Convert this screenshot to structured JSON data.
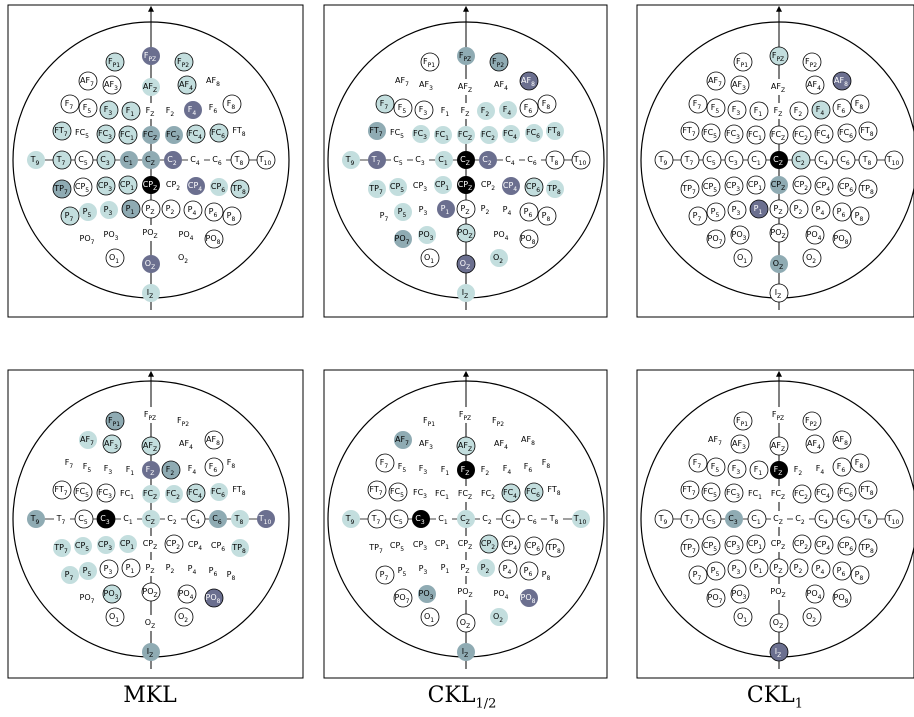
{
  "figure": {
    "captions": [
      {
        "main": "MKL",
        "sub": ""
      },
      {
        "main": "CKL",
        "sub": "1/2"
      },
      {
        "main": "CKL",
        "sub": "1"
      }
    ]
  },
  "electrode_labels": {
    "Fp1": [
      "F",
      "P1"
    ],
    "Fpz": [
      "F",
      "PZ"
    ],
    "Fp2": [
      "F",
      "P2"
    ],
    "AF7": [
      "AF",
      "7"
    ],
    "AF3": [
      "AF",
      "3"
    ],
    "AFz": [
      "AF",
      "Z"
    ],
    "AF4": [
      "AF",
      "4"
    ],
    "AF8": [
      "AF",
      "8"
    ],
    "F7": [
      "F",
      "7"
    ],
    "F5": [
      "F",
      "5"
    ],
    "F3": [
      "F",
      "3"
    ],
    "F1": [
      "F",
      "1"
    ],
    "Fz": [
      "F",
      "Z"
    ],
    "F2": [
      "F",
      "2"
    ],
    "F4": [
      "F",
      "4"
    ],
    "F6": [
      "F",
      "6"
    ],
    "F8": [
      "F",
      "8"
    ],
    "FT7": [
      "FT",
      "7"
    ],
    "FC5": [
      "FC",
      "5"
    ],
    "FC3": [
      "FC",
      "3"
    ],
    "FC1": [
      "FC",
      "1"
    ],
    "FCz": [
      "FC",
      "Z"
    ],
    "FC2": [
      "FC",
      "2"
    ],
    "FC4": [
      "FC",
      "4"
    ],
    "FC6": [
      "FC",
      "6"
    ],
    "FT8": [
      "FT",
      "8"
    ],
    "T9": [
      "T",
      "9"
    ],
    "T7": [
      "T",
      "7"
    ],
    "C5": [
      "C",
      "5"
    ],
    "C3": [
      "C",
      "3"
    ],
    "C1": [
      "C",
      "1"
    ],
    "Cz": [
      "C",
      "Z"
    ],
    "C2": [
      "C",
      "2"
    ],
    "C4": [
      "C",
      "4"
    ],
    "C6": [
      "C",
      "6"
    ],
    "T8": [
      "T",
      "8"
    ],
    "T10": [
      "T",
      "10"
    ],
    "TP7": [
      "TP",
      "7"
    ],
    "CP5": [
      "CP",
      "5"
    ],
    "CP3": [
      "CP",
      "3"
    ],
    "CP1": [
      "CP",
      "1"
    ],
    "CPz": [
      "CP",
      "Z"
    ],
    "CP2": [
      "CP",
      "2"
    ],
    "CP4": [
      "CP",
      "4"
    ],
    "CP6": [
      "CP",
      "6"
    ],
    "TP8": [
      "TP",
      "8"
    ],
    "P7": [
      "P",
      "7"
    ],
    "P5": [
      "P",
      "5"
    ],
    "P3": [
      "P",
      "3"
    ],
    "P1": [
      "P",
      "1"
    ],
    "Pz": [
      "P",
      "Z"
    ],
    "P2": [
      "P",
      "2"
    ],
    "P4": [
      "P",
      "4"
    ],
    "P6": [
      "P",
      "6"
    ],
    "P8": [
      "P",
      "8"
    ],
    "PO7": [
      "PO",
      "7"
    ],
    "PO3": [
      "PO",
      "3"
    ],
    "POz": [
      "PO",
      "Z"
    ],
    "PO4": [
      "PO",
      "4"
    ],
    "PO8": [
      "PO",
      "8"
    ],
    "O1": [
      "O",
      "1"
    ],
    "Oz": [
      "O",
      "Z"
    ],
    "O2": [
      "O",
      "2"
    ],
    "Iz": [
      "I",
      "Z"
    ]
  },
  "colors": {
    "light": "#c3dede",
    "mid": "#8fabb3",
    "dark": "#6b6f8f",
    "black": "#000000"
  },
  "panels": [
    {
      "circled": [
        "Fp1",
        "Fp2",
        "AF7",
        "AF3",
        "AF4",
        "F7",
        "F5",
        "F3",
        "F1",
        "F8",
        "FT7",
        "FC3",
        "FC1",
        "FC4",
        "FC6",
        "T7",
        "C5",
        "C3",
        "T8",
        "T10",
        "TP7",
        "CP5",
        "CP3",
        "CP1",
        "TP8",
        "P7",
        "P1",
        "Pz",
        "P2",
        "P4",
        "P6",
        "P8",
        "PO8",
        "O1"
      ],
      "weights": {
        "Fpz": "dark",
        "F4": "dark",
        "C2": "dark",
        "Fp1": "light",
        "Fp2": "light",
        "AFz": "light",
        "AF4": "light",
        "F3": "light",
        "F1": "light",
        "FT7": "light",
        "FC3": "light",
        "FC1": "light",
        "FC2": "mid",
        "FCz": "mid",
        "FC4": "light",
        "FC6": "light",
        "T9": "light",
        "T7": "light",
        "C3": "light",
        "C1": "mid",
        "Cz": "mid",
        "CPz": "black",
        "CP1": "light",
        "CP3": "light",
        "CP4": "dark",
        "CP6": "light",
        "TP7": "mid",
        "TP8": "light",
        "P7": "light",
        "P5": "light",
        "P3": "light",
        "P1": "mid",
        "Oz": "dark",
        "Iz": "light"
      }
    },
    {
      "circled": [
        "Fp1",
        "Fp2",
        "AF8",
        "F6",
        "F8",
        "F7",
        "F5",
        "F3",
        "T10",
        "T8",
        "CP6",
        "P6",
        "P8",
        "PO8",
        "O1",
        "Oz",
        "Pz",
        "POz"
      ],
      "weights": {
        "Fpz": "mid",
        "Fp2": "mid",
        "AF8": "dark",
        "F7": "light",
        "F2": "light",
        "F4": "light",
        "FT7": "mid",
        "FC3": "light",
        "FC1": "light",
        "FCz": "light",
        "FC2": "light",
        "FC4": "light",
        "FC6": "light",
        "FT8": "light",
        "T9": "light",
        "T7": "dark",
        "C1": "light",
        "Cz": "black",
        "C2": "dark",
        "TP7": "light",
        "CP5": "light",
        "CP1": "light",
        "CPz": "black",
        "CP4": "dark",
        "CP6": "light",
        "TP8": "light",
        "P1": "dark",
        "P5": "light",
        "PO7": "mid",
        "PO3": "light",
        "POz": "light",
        "Oz": "dark",
        "O2": "light",
        "Iz": "light"
      }
    },
    {
      "circled": [
        "Fp1",
        "Fp2",
        "Fpz",
        "AF7",
        "AF3",
        "AF4",
        "AF8",
        "F7",
        "F5",
        "F3",
        "F1",
        "F2",
        "F4",
        "F6",
        "F8",
        "FT7",
        "FC5",
        "FC3",
        "FC1",
        "FCz",
        "FC2",
        "FC4",
        "FC6",
        "FT8",
        "T9",
        "T7",
        "C5",
        "C3",
        "C1",
        "C2",
        "C4",
        "C6",
        "T8",
        "T10",
        "TP7",
        "CP5",
        "CP3",
        "CP1",
        "CP2",
        "CP4",
        "CP6",
        "TP8",
        "P7",
        "P5",
        "P3",
        "P1",
        "Pz",
        "P2",
        "P4",
        "P6",
        "P8",
        "PO7",
        "PO3",
        "POz",
        "PO4",
        "PO8",
        "O1",
        "O2",
        "Iz"
      ],
      "weights": {
        "Fpz": "light",
        "AF8": "dark",
        "F4": "light",
        "Cz": "black",
        "C2": "light",
        "CPz": "mid",
        "P1": "dark",
        "Oz": "mid"
      }
    },
    {
      "circled": [
        "Fp1",
        "AF3",
        "AFz",
        "AF8",
        "F2",
        "F6",
        "FT7",
        "FC5",
        "FC3",
        "FC4",
        "C5",
        "C3",
        "C4",
        "CP2",
        "P3",
        "P1",
        "PO3",
        "POz",
        "PO4",
        "PO8",
        "O1",
        "O2"
      ],
      "weights": {
        "Fp1": "mid",
        "AF7": "light",
        "AF3": "light",
        "AFz": "light",
        "Fz": "dark",
        "F2": "mid",
        "FC2": "light",
        "FC4": "light",
        "FC6": "light",
        "FCz": "light",
        "T9": "mid",
        "C3": "black",
        "Cz": "light",
        "C6": "mid",
        "T10": "dark",
        "T8": "light",
        "CP5": "light",
        "CP3": "light",
        "CP1": "light",
        "P7": "light",
        "P5": "light",
        "PO3": "light",
        "PO8": "dark",
        "Iz": "mid",
        "TP7": "light",
        "TP8": "light"
      }
    },
    {
      "circled": [
        "F7",
        "FT7",
        "FC5",
        "FC4",
        "FC6",
        "T7",
        "C5",
        "C4",
        "CP2",
        "CP4",
        "CP6",
        "TP8",
        "P7",
        "P4",
        "P6",
        "PO7",
        "O1",
        "Oz",
        "AFz"
      ],
      "weights": {
        "AF7": "mid",
        "AFz": "light",
        "Fz": "black",
        "FC4": "light",
        "FC6": "light",
        "T9": "light",
        "C3": "black",
        "Cz": "light",
        "T10": "light",
        "CP2": "light",
        "P2": "light",
        "PO3": "mid",
        "PO8": "dark",
        "O2": "light",
        "Iz": "mid"
      }
    },
    {
      "circled": [
        "Fp1",
        "Fp2",
        "AF3",
        "AFz",
        "AF4",
        "AF8",
        "F7",
        "F5",
        "F3",
        "F1",
        "F6",
        "F8",
        "FT7",
        "FC5",
        "FC3",
        "FC2",
        "FC4",
        "FC6",
        "FT8",
        "T9",
        "T7",
        "C5",
        "C1",
        "C4",
        "C6",
        "T8",
        "T10",
        "TP7",
        "CP5",
        "CP3",
        "CP1",
        "CP2",
        "CP4",
        "CP6",
        "TP8",
        "P7",
        "P5",
        "P3",
        "P1",
        "P2",
        "P4",
        "P6",
        "P8",
        "PO7",
        "PO3",
        "PO4",
        "PO8",
        "O1",
        "O2",
        "Oz",
        "Pz",
        "Iz"
      ],
      "weights": {
        "Fz": "black",
        "C3": "mid",
        "Iz": "dark"
      }
    }
  ]
}
